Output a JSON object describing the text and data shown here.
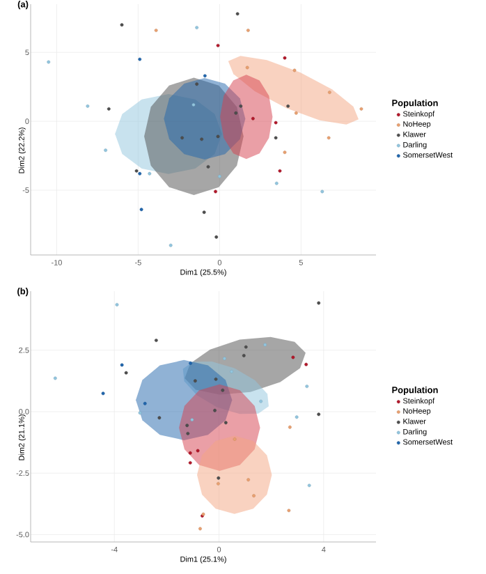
{
  "chart_data": [
    {
      "type": "scatter",
      "title": "(a)",
      "xlabel": "Dim1 (25.5%)",
      "ylabel": "Dim2 (22.2%)",
      "legend_title": "Population",
      "legend": "right",
      "grid": true,
      "xlim": [
        -11.6,
        9.6
      ],
      "ylim": [
        -9.7,
        8.5
      ],
      "xticks": [
        -10,
        -5,
        0,
        5
      ],
      "yticks": [
        -5,
        0,
        5
      ],
      "series": [
        {
          "type": "area",
          "marker": "none",
          "color": "#92c5de",
          "x": [
            0.14,
            -0.3,
            -1.5,
            -3.14,
            -4.78,
            -5.98,
            -6.42,
            -5.98,
            -4.78,
            -3.14,
            -1.5,
            -0.3
          ],
          "values": [
            -0.92,
            0.53,
            1.59,
            1.98,
            1.59,
            0.53,
            -0.92,
            -2.37,
            -3.43,
            -3.82,
            -3.43,
            -2.37
          ]
        },
        {
          "type": "area",
          "marker": "none",
          "color": "#4d4d4d",
          "x": [
            1.47,
            1.06,
            -0.05,
            -1.58,
            -3.1,
            -4.22,
            -4.63,
            -4.22,
            -3.1,
            -1.58,
            -0.05,
            1.06
          ],
          "values": [
            -1.09,
            1.04,
            2.6,
            3.17,
            2.6,
            1.04,
            -1.09,
            -3.22,
            -4.78,
            -5.35,
            -4.78,
            -3.22
          ]
        },
        {
          "type": "area",
          "marker": "none",
          "color": "#2166ac",
          "x": [
            1.58,
            1.25,
            0.33,
            -0.92,
            -2.17,
            -3.09,
            -3.42,
            -3.09,
            -2.17,
            -0.92,
            0.33,
            1.25
          ],
          "values": [
            0.18,
            1.66,
            2.74,
            3.14,
            2.74,
            1.66,
            0.18,
            -1.3,
            -2.38,
            -2.78,
            -2.38,
            -1.3
          ]
        },
        {
          "type": "area",
          "marker": "none",
          "color": "#f4a582",
          "x": [
            8.53,
            7.78,
            6.15,
            4.1,
            2.16,
            0.85,
            0.53,
            1.28,
            2.9,
            4.95,
            6.9,
            8.21
          ],
          "values": [
            0.14,
            -0.23,
            0.07,
            0.95,
            2.18,
            3.43,
            4.37,
            4.74,
            4.44,
            3.55,
            2.32,
            1.07
          ]
        },
        {
          "type": "area",
          "marker": "none",
          "color": "#d6404e",
          "x": [
            3.25,
            3.03,
            2.45,
            1.64,
            0.84,
            0.25,
            0.03,
            0.25,
            0.84,
            1.64,
            2.45,
            3.03
          ],
          "values": [
            0.32,
            1.85,
            2.97,
            3.38,
            2.97,
            1.85,
            0.32,
            -1.21,
            -2.33,
            -2.74,
            -2.33,
            -1.21
          ]
        },
        {
          "name": "Steinkopf",
          "marker": "circle",
          "color": "#b2182b",
          "x": [
            -0.1,
            4.0,
            2.05,
            3.45,
            3.7,
            -0.25
          ],
          "values": [
            5.5,
            4.6,
            0.2,
            -0.1,
            -3.6,
            -5.1
          ]
        },
        {
          "name": "NoHeep",
          "marker": "circle",
          "color": "#e8a070",
          "x": [
            -3.9,
            1.75,
            4.6,
            1.7,
            6.75,
            4.7,
            8.7,
            6.7,
            4.0
          ],
          "values": [
            6.6,
            6.6,
            3.7,
            3.9,
            2.1,
            0.6,
            0.9,
            -1.2,
            -2.25
          ]
        },
        {
          "name": "Klawer",
          "marker": "circle",
          "color": "#4d4d4d",
          "x": [
            -6.0,
            1.1,
            -1.4,
            -6.8,
            1.3,
            4.2,
            1.0,
            -2.3,
            -1.1,
            -0.1,
            3.45,
            -0.7,
            -5.1,
            -0.95,
            -0.2
          ],
          "values": [
            7.0,
            7.8,
            2.7,
            0.9,
            1.1,
            1.1,
            0.6,
            -1.2,
            -1.3,
            -1.1,
            -1.2,
            -3.3,
            -3.6,
            -6.6,
            -8.4
          ]
        },
        {
          "name": "Darling",
          "marker": "circle",
          "color": "#92c5de",
          "x": [
            -10.5,
            -1.4,
            -8.1,
            -1.6,
            -7.0,
            -4.3,
            0.0,
            3.5,
            6.3,
            -3.0
          ],
          "values": [
            4.3,
            6.8,
            1.1,
            1.2,
            -2.1,
            -3.8,
            -4.0,
            -4.5,
            -5.1,
            -9.0
          ]
        },
        {
          "name": "SomersetWest",
          "marker": "circle",
          "color": "#2166ac",
          "x": [
            -4.9,
            -0.9,
            -4.9,
            -4.8
          ],
          "values": [
            4.5,
            3.3,
            -3.8,
            -6.4
          ]
        }
      ]
    },
    {
      "type": "scatter",
      "title": "(b)",
      "xlabel": "Dim1 (25.1%)",
      "ylabel": "Dim2 (21.1%)",
      "legend_title": "Population",
      "legend": "right",
      "grid": true,
      "xlim": [
        -7.2,
        6.0
      ],
      "ylim": [
        -5.3,
        4.9
      ],
      "xticks": [
        -4,
        0,
        4
      ],
      "yticks": [
        2.5,
        {
          "value": 0,
          "label": "0.0"
        },
        -2.5,
        {
          "value": -5,
          "label": "-5.0"
        }
      ],
      "series": [
        {
          "type": "area",
          "marker": "none",
          "color": "#4d4d4d",
          "x": [
            3.31,
            3.1,
            2.34,
            1.2,
            0.03,
            -0.89,
            -1.31,
            -1.1,
            -0.34,
            0.79,
            1.97,
            2.89
          ],
          "values": [
            2.39,
            1.77,
            1.2,
            0.8,
            0.69,
            0.89,
            1.36,
            1.96,
            2.53,
            2.93,
            3.04,
            2.84
          ]
        },
        {
          "type": "area",
          "marker": "none",
          "color": "#92c5de",
          "x": [
            1.9,
            1.5,
            0.79,
            -0.08,
            -0.85,
            -1.33,
            -1.38,
            -0.99,
            -0.27,
            0.59,
            1.37,
            1.85
          ],
          "values": [
            0.22,
            -0.08,
            -0.09,
            0.18,
            0.67,
            1.24,
            1.74,
            2.03,
            2.04,
            1.77,
            1.28,
            0.72
          ]
        },
        {
          "type": "area",
          "marker": "none",
          "color": "#2166ac",
          "x": [
            0.5,
            0.25,
            -0.42,
            -1.34,
            -2.26,
            -2.93,
            -3.18,
            -2.93,
            -2.26,
            -1.34,
            -0.42,
            0.25
          ],
          "values": [
            0.47,
            1.29,
            1.88,
            2.1,
            1.88,
            1.29,
            0.47,
            -0.35,
            -0.94,
            -1.16,
            -0.94,
            -0.35
          ]
        },
        {
          "type": "area",
          "marker": "none",
          "color": "#d6404e",
          "x": [
            1.57,
            1.36,
            0.8,
            0.02,
            -0.76,
            -1.32,
            -1.53,
            -1.32,
            -0.76,
            0.02,
            0.8,
            1.36
          ],
          "values": [
            -0.65,
            0.23,
            0.87,
            1.11,
            0.87,
            0.23,
            -0.65,
            -1.53,
            -2.17,
            -2.41,
            -2.17,
            -1.53
          ]
        },
        {
          "type": "area",
          "marker": "none",
          "color": "#f4a582",
          "x": [
            2.02,
            1.83,
            1.31,
            0.59,
            -0.13,
            -0.65,
            -0.84,
            -0.65,
            -0.13,
            0.59,
            1.31,
            1.83
          ],
          "values": [
            -2.57,
            -1.77,
            -1.19,
            -0.98,
            -1.19,
            -1.77,
            -2.57,
            -3.37,
            -3.95,
            -4.16,
            -3.95,
            -3.37
          ]
        },
        {
          "name": "Steinkopf",
          "marker": "circle",
          "color": "#b2182b",
          "x": [
            2.83,
            3.33,
            -0.81,
            -1.1,
            -1.1,
            -0.64
          ],
          "values": [
            2.21,
            1.92,
            -1.59,
            -1.68,
            -2.08,
            -4.24
          ]
        },
        {
          "name": "NoHeep",
          "marker": "circle",
          "color": "#e8a070",
          "x": [
            2.71,
            0.6,
            -0.03,
            1.12,
            1.33,
            2.67,
            -0.6,
            -0.72
          ],
          "values": [
            -0.63,
            -1.12,
            -2.93,
            -2.77,
            -3.42,
            -4.02,
            -4.17,
            -4.76
          ]
        },
        {
          "name": "Klawer",
          "marker": "circle",
          "color": "#4d4d4d",
          "x": [
            3.81,
            -2.4,
            1.03,
            0.95,
            -3.55,
            -0.91,
            -0.12,
            0.14,
            -0.16,
            -2.28,
            3.81,
            0.26,
            -1.22,
            -1.19,
            -0.02
          ],
          "values": [
            4.42,
            2.9,
            2.63,
            2.28,
            1.58,
            1.25,
            1.32,
            0.87,
            0.05,
            -0.25,
            -0.11,
            -0.45,
            -0.56,
            -0.89,
            -2.7
          ]
        },
        {
          "name": "Darling",
          "marker": "circle",
          "color": "#92c5de",
          "x": [
            -3.9,
            1.76,
            0.21,
            -6.26,
            0.48,
            3.36,
            1.6,
            -3.02,
            2.97,
            -1.03,
            3.45
          ],
          "values": [
            4.35,
            2.72,
            2.16,
            1.36,
            1.63,
            1.03,
            0.42,
            -0.05,
            -0.22,
            -0.33,
            -3.0
          ]
        },
        {
          "name": "SomersetWest",
          "marker": "circle",
          "color": "#2166ac",
          "x": [
            -3.71,
            -1.09,
            -4.43,
            -2.83
          ],
          "values": [
            1.9,
            1.97,
            0.74,
            0.33
          ]
        }
      ]
    }
  ]
}
